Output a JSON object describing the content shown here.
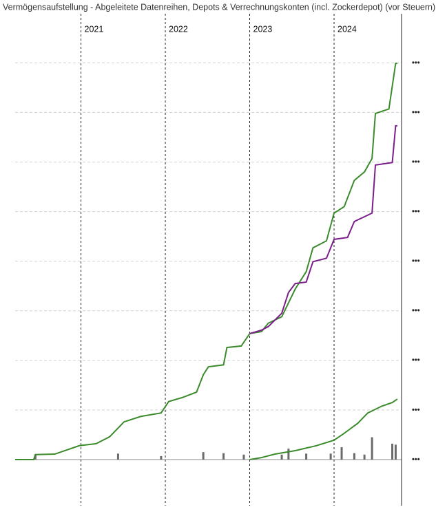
{
  "chart_data": {
    "type": "line",
    "title": "Vermögensaufstellung - Abgeleitete Datenreihen, Depots & Verrechnungskonten (incl. Zockerdepot) (vor Steuern)",
    "xlim": [
      2020.22,
      2024.8
    ],
    "xticks": [
      2021,
      2022,
      2023,
      2024
    ],
    "ylim": [
      -0.93,
      8.99
    ],
    "yticks": [
      {
        "value": 0,
        "label": "•••"
      },
      {
        "value": 1,
        "label": "•••"
      },
      {
        "value": 2,
        "label": "•••"
      },
      {
        "value": 3,
        "label": "•••"
      },
      {
        "value": 4,
        "label": "•••"
      },
      {
        "value": 5,
        "label": "•••"
      },
      {
        "value": 6,
        "label": "•••"
      },
      {
        "value": 7,
        "label": "•••"
      },
      {
        "value": 8,
        "label": "•••"
      }
    ],
    "grid": true,
    "series": [
      {
        "type": "line",
        "color": "#3b8a2c",
        "x": [
          2020.22,
          2020.44,
          2020.46,
          2020.69,
          2020.98,
          2021.18,
          2021.34,
          2021.46,
          2021.51,
          2021.71,
          2021.95,
          2022.04,
          2022.2,
          2022.37,
          2022.45,
          2022.51,
          2022.69,
          2022.73,
          2022.9,
          2023.0,
          2023.14,
          2023.22,
          2023.38,
          2023.46,
          2023.54,
          2023.67,
          2023.75,
          2023.91,
          2024.0,
          2024.12,
          2024.24,
          2024.36,
          2024.45,
          2024.49,
          2024.65,
          2024.69,
          2024.73,
          2024.75
        ],
        "values": [
          0,
          0,
          0.1,
          0.11,
          0.28,
          0.32,
          0.46,
          0.67,
          0.76,
          0.87,
          0.94,
          1.17,
          1.25,
          1.36,
          1.71,
          1.87,
          1.91,
          2.26,
          2.29,
          2.54,
          2.58,
          2.75,
          2.88,
          3.16,
          3.44,
          3.79,
          4.27,
          4.41,
          4.97,
          5.1,
          5.63,
          5.8,
          6.07,
          6.98,
          7.07,
          7.53,
          7.99,
          7.99
        ]
      },
      {
        "type": "line",
        "color": "#7a1f8a",
        "x": [
          2023.0,
          2023.14,
          2023.22,
          2023.38,
          2023.46,
          2023.54,
          2023.67,
          2023.75,
          2023.91,
          2024.0,
          2024.16,
          2024.24,
          2024.45,
          2024.49,
          2024.69,
          2024.73,
          2024.75
        ],
        "values": [
          2.54,
          2.61,
          2.68,
          2.95,
          3.37,
          3.55,
          3.58,
          3.99,
          4.06,
          4.44,
          4.48,
          4.8,
          4.97,
          5.94,
          5.99,
          6.73,
          6.73
        ]
      },
      {
        "type": "line",
        "color": "#3b8a2c",
        "x": [
          2023.0,
          2023.14,
          2023.3,
          2023.54,
          2023.79,
          2024.0,
          2024.12,
          2024.28,
          2024.4,
          2024.57,
          2024.69,
          2024.75
        ],
        "values": [
          0,
          0.04,
          0.11,
          0.18,
          0.28,
          0.39,
          0.53,
          0.73,
          0.94,
          1.08,
          1.15,
          1.22
        ]
      },
      {
        "type": "bar",
        "color": "#6b6b6b",
        "x": [
          2020.46,
          2021.44,
          2021.95,
          2022.45,
          2022.69,
          2022.93,
          2023.38,
          2023.46,
          2023.67,
          2023.96,
          2024.09,
          2024.24,
          2024.36,
          2024.45,
          2024.69,
          2024.73
        ],
        "values": [
          0.1,
          0.12,
          0.07,
          0.15,
          0.13,
          0.1,
          0.1,
          0.22,
          0.12,
          0.12,
          0.25,
          0.13,
          0.1,
          0.45,
          0.32,
          0.3
        ]
      }
    ]
  }
}
